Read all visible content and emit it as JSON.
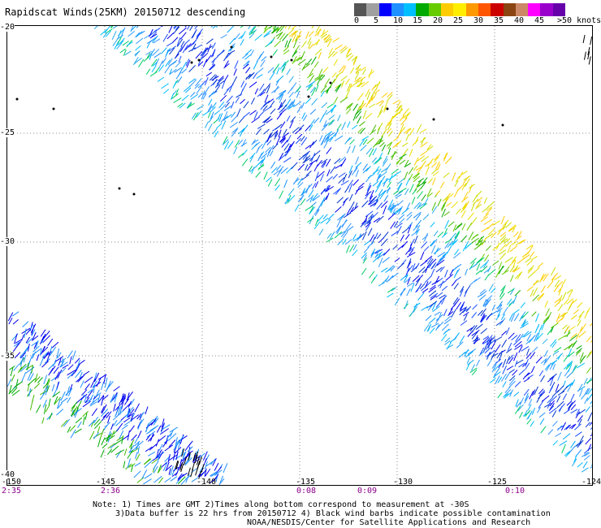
{
  "title": "Rapidscat Winds(25KM) 20150712 descending",
  "legend": {
    "colors": [
      "#555555",
      "#a0a0a0",
      "#0000ff",
      "#1e90ff",
      "#00bfff",
      "#00aa00",
      "#66cc00",
      "#ffcc00",
      "#ffee00",
      "#ff9900",
      "#ff5500",
      "#cc0000",
      "#8b4513",
      "#cc8866",
      "#ff00ff",
      "#9900cc",
      "#6600aa"
    ],
    "labels": [
      "0",
      "5",
      "10",
      "15",
      "20",
      "25",
      "30",
      "35",
      "40",
      "45",
      ">50 knots"
    ]
  },
  "lat_labels": [
    "-20",
    "-25",
    "-30",
    "-35",
    "-40"
  ],
  "lon_labels": [
    "-150",
    "-145",
    "-140",
    "-135",
    "-130",
    "-125",
    "-124"
  ],
  "time_labels": [
    "2:35",
    "2:36",
    "0:08",
    "0:09",
    "0:10"
  ],
  "notes": [
    "Note: 1) Times are GMT 2)Times along bottom correspond to measurement at -30S",
    "3)Data buffer is 22 hrs from 20150712 4) Black wind barbs indicate possible contamination",
    "NOAA/NESDIS/Center for Satellite Applications and Research"
  ]
}
